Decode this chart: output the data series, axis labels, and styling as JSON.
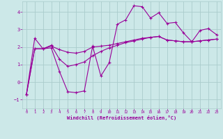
{
  "xlabel": "Windchill (Refroidissement éolien,°C)",
  "bg_color": "#cce8e8",
  "line_color": "#990099",
  "grid_color": "#aacccc",
  "xlim": [
    -0.5,
    23.5
  ],
  "ylim": [
    -1.5,
    4.6
  ],
  "yticks": [
    -1,
    0,
    1,
    2,
    3,
    4
  ],
  "xticks": [
    0,
    1,
    2,
    3,
    4,
    5,
    6,
    7,
    8,
    9,
    10,
    11,
    12,
    13,
    14,
    15,
    16,
    17,
    18,
    19,
    20,
    21,
    22,
    23
  ],
  "line1_x": [
    0,
    1,
    2,
    3,
    4,
    5,
    6,
    7,
    8,
    9,
    10,
    11,
    12,
    13,
    14,
    15,
    16,
    17,
    18,
    19,
    20,
    21,
    22,
    23
  ],
  "line1_y": [
    -0.7,
    2.5,
    1.9,
    1.95,
    0.6,
    -0.55,
    -0.6,
    -0.5,
    2.05,
    0.35,
    1.1,
    3.3,
    3.55,
    4.35,
    4.3,
    3.65,
    3.95,
    3.35,
    3.4,
    2.8,
    2.3,
    2.95,
    3.05,
    2.7
  ],
  "line2_x": [
    0,
    1,
    2,
    3,
    4,
    5,
    6,
    7,
    8,
    9,
    10,
    11,
    12,
    13,
    14,
    15,
    16,
    17,
    18,
    19,
    20,
    21,
    22,
    23
  ],
  "line2_y": [
    -0.7,
    1.9,
    1.9,
    2.05,
    1.85,
    1.7,
    1.65,
    1.75,
    2.0,
    2.05,
    2.1,
    2.2,
    2.3,
    2.4,
    2.5,
    2.55,
    2.6,
    2.4,
    2.35,
    2.3,
    2.3,
    2.35,
    2.4,
    2.45
  ],
  "line3_x": [
    0,
    1,
    2,
    3,
    4,
    5,
    6,
    7,
    8,
    9,
    10,
    11,
    12,
    13,
    14,
    15,
    16,
    17,
    18,
    19,
    20,
    21,
    22,
    23
  ],
  "line3_y": [
    -0.7,
    1.9,
    1.9,
    2.1,
    1.3,
    0.9,
    1.0,
    1.15,
    1.5,
    1.75,
    1.95,
    2.1,
    2.25,
    2.35,
    2.45,
    2.55,
    2.6,
    2.4,
    2.35,
    2.3,
    2.3,
    2.35,
    2.4,
    2.45
  ]
}
